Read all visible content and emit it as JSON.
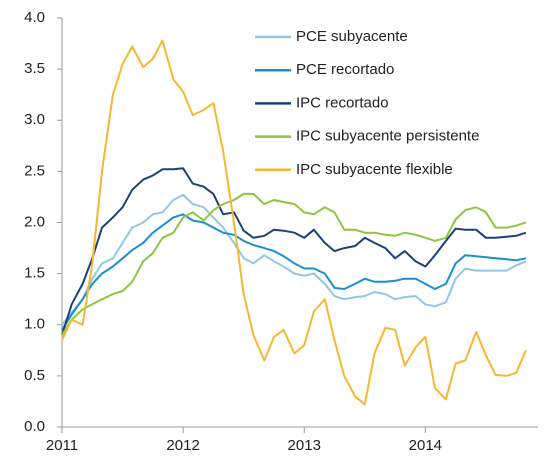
{
  "chart_data": {
    "type": "line",
    "x": [
      2011,
      2011.08,
      2011.17,
      2011.25,
      2011.33,
      2011.42,
      2011.5,
      2011.58,
      2011.67,
      2011.75,
      2011.83,
      2011.92,
      2012,
      2012.08,
      2012.17,
      2012.25,
      2012.33,
      2012.42,
      2012.5,
      2012.58,
      2012.67,
      2012.75,
      2012.83,
      2012.92,
      2013,
      2013.08,
      2013.17,
      2013.25,
      2013.33,
      2013.42,
      2013.5,
      2013.58,
      2013.67,
      2013.75,
      2013.83,
      2013.92,
      2014,
      2014.08,
      2014.17,
      2014.25,
      2014.33,
      2014.42,
      2014.5,
      2014.58,
      2014.67,
      2014.75,
      2014.83
    ],
    "series": [
      {
        "name": "PCE subyacente",
        "color": "#92c5e6",
        "values": [
          1.0,
          1.12,
          1.25,
          1.45,
          1.6,
          1.65,
          1.8,
          1.95,
          2.0,
          2.08,
          2.1,
          2.22,
          2.27,
          2.18,
          2.15,
          2.05,
          1.95,
          1.8,
          1.65,
          1.6,
          1.68,
          1.62,
          1.57,
          1.5,
          1.48,
          1.5,
          1.4,
          1.28,
          1.25,
          1.27,
          1.28,
          1.32,
          1.3,
          1.25,
          1.27,
          1.28,
          1.2,
          1.18,
          1.22,
          1.45,
          1.55,
          1.53,
          1.53,
          1.53,
          1.53,
          1.58,
          1.62
        ]
      },
      {
        "name": "PCE recortado",
        "color": "#1a8fd0",
        "values": [
          0.95,
          1.1,
          1.25,
          1.4,
          1.5,
          1.57,
          1.65,
          1.73,
          1.8,
          1.9,
          1.97,
          2.05,
          2.08,
          2.02,
          2.0,
          1.95,
          1.9,
          1.88,
          1.82,
          1.78,
          1.75,
          1.72,
          1.67,
          1.6,
          1.55,
          1.55,
          1.5,
          1.36,
          1.35,
          1.4,
          1.45,
          1.42,
          1.42,
          1.43,
          1.45,
          1.45,
          1.4,
          1.35,
          1.4,
          1.6,
          1.68,
          1.67,
          1.66,
          1.65,
          1.64,
          1.63,
          1.65
        ]
      },
      {
        "name": "IPC recortado",
        "color": "#1f3f7a",
        "values": [
          0.9,
          1.2,
          1.4,
          1.65,
          1.95,
          2.05,
          2.15,
          2.32,
          2.42,
          2.46,
          2.52,
          2.52,
          2.53,
          2.38,
          2.35,
          2.28,
          2.08,
          2.1,
          1.92,
          1.85,
          1.87,
          1.93,
          1.92,
          1.9,
          1.85,
          1.93,
          1.8,
          1.72,
          1.75,
          1.77,
          1.85,
          1.8,
          1.75,
          1.65,
          1.72,
          1.62,
          1.57,
          1.68,
          1.82,
          1.94,
          1.93,
          1.93,
          1.85,
          1.85,
          1.86,
          1.87,
          1.9
        ]
      },
      {
        "name": "IPC subyacente persistente",
        "color": "#8cc63f",
        "values": [
          0.9,
          1.05,
          1.15,
          1.2,
          1.25,
          1.3,
          1.33,
          1.42,
          1.62,
          1.7,
          1.85,
          1.9,
          2.05,
          2.1,
          2.02,
          2.12,
          2.18,
          2.22,
          2.28,
          2.28,
          2.18,
          2.22,
          2.2,
          2.18,
          2.1,
          2.08,
          2.15,
          2.1,
          1.93,
          1.93,
          1.9,
          1.9,
          1.88,
          1.87,
          1.9,
          1.88,
          1.85,
          1.82,
          1.85,
          2.03,
          2.12,
          2.15,
          2.1,
          1.95,
          1.95,
          1.97,
          2.0
        ]
      },
      {
        "name": "IPC subyacente flexible",
        "color": "#f5b731",
        "values": [
          0.85,
          1.05,
          1.0,
          1.6,
          2.5,
          3.25,
          3.55,
          3.72,
          3.52,
          3.6,
          3.78,
          3.4,
          3.28,
          3.05,
          3.1,
          3.17,
          2.7,
          2.0,
          1.3,
          0.9,
          0.65,
          0.88,
          0.95,
          0.72,
          0.8,
          1.13,
          1.25,
          0.85,
          0.5,
          0.3,
          0.22,
          0.72,
          0.97,
          0.95,
          0.6,
          0.78,
          0.88,
          0.38,
          0.27,
          0.62,
          0.65,
          0.93,
          0.7,
          0.51,
          0.5,
          0.53,
          0.75
        ]
      }
    ],
    "xlim": [
      2011,
      2014.93
    ],
    "xticks": [
      2011,
      2012,
      2013,
      2014
    ],
    "ylim": [
      0,
      4
    ],
    "yticks": [
      {
        "value": 0,
        "label": "0.0"
      },
      {
        "value": 0.5,
        "label": "0.5"
      },
      {
        "value": 1,
        "label": "1.0"
      },
      {
        "value": 1.5,
        "label": "1.5"
      },
      {
        "value": 2,
        "label": "2.0"
      },
      {
        "value": 2.5,
        "label": "2.5"
      },
      {
        "value": 3,
        "label": "3.0"
      },
      {
        "value": 3.5,
        "label": "3.5"
      },
      {
        "value": 4,
        "label": "4.0"
      }
    ],
    "legend": "top-right"
  }
}
